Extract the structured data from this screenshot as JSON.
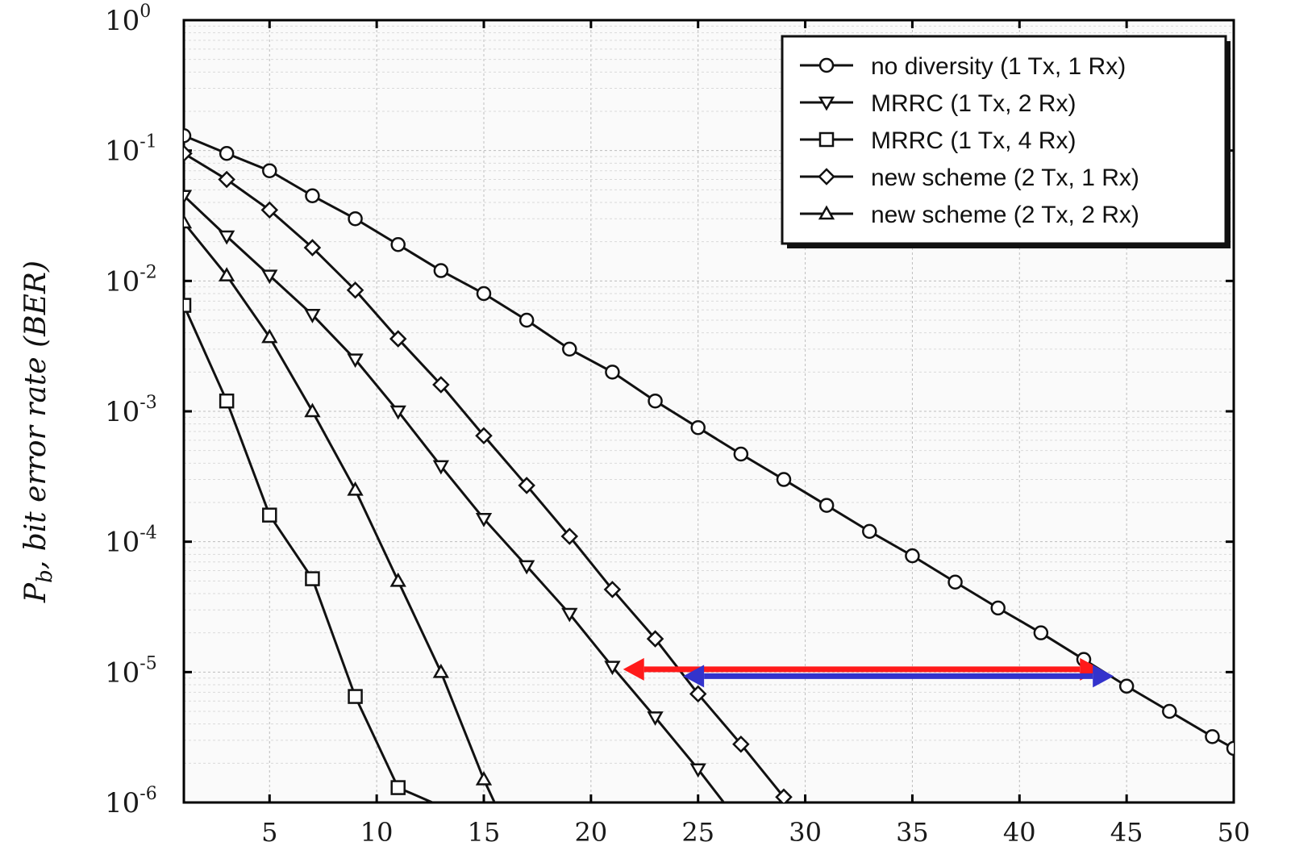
{
  "chart_data": {
    "type": "line",
    "title": "",
    "xlabel": "",
    "ylabel": "P_b, bit error rate (BER)",
    "ylabel_prefix": "P",
    "ylabel_sub": "b",
    "ylabel_rest": ", bit error rate (BER)",
    "x_scale": "linear",
    "y_scale": "log",
    "xlim": [
      1,
      50
    ],
    "ylim": [
      1e-06,
      1
    ],
    "x_ticks": [
      5,
      10,
      15,
      20,
      25,
      30,
      35,
      40,
      45,
      50
    ],
    "x_tick_labels": [
      "5",
      "10",
      "15",
      "20",
      "25",
      "30",
      "35",
      "40",
      "45",
      "50"
    ],
    "y_ticks": [
      {
        "value": 1,
        "base": "10",
        "exp": "0"
      },
      {
        "value": 0.1,
        "base": "10",
        "exp": "-1"
      },
      {
        "value": 0.01,
        "base": "10",
        "exp": "-2"
      },
      {
        "value": 0.001,
        "base": "10",
        "exp": "-3"
      },
      {
        "value": 0.0001,
        "base": "10",
        "exp": "-4"
      },
      {
        "value": 1e-05,
        "base": "10",
        "exp": "-5"
      },
      {
        "value": 1e-06,
        "base": "10",
        "exp": "-6"
      }
    ],
    "grid": true,
    "legend_position": "top-right",
    "series": [
      {
        "name": "no diversity (1 Tx, 1 Rx)",
        "marker": "circle",
        "x": [
          1,
          3,
          5,
          7,
          9,
          11,
          13,
          15,
          17,
          19,
          21,
          23,
          25,
          27,
          29,
          31,
          33,
          35,
          37,
          39,
          41,
          43,
          45,
          47,
          49,
          50
        ],
        "y": [
          0.13,
          0.095,
          0.07,
          0.045,
          0.03,
          0.019,
          0.012,
          0.008,
          0.005,
          0.003,
          0.002,
          0.0012,
          0.00075,
          0.00047,
          0.0003,
          0.00019,
          0.00012,
          7.8e-05,
          4.9e-05,
          3.1e-05,
          2e-05,
          1.25e-05,
          7.8e-06,
          5e-06,
          3.2e-06,
          2.6e-06
        ]
      },
      {
        "name": "MRRC (1 Tx, 2 Rx)",
        "marker": "triangle-down",
        "x": [
          1,
          3,
          5,
          7,
          9,
          11,
          13,
          15,
          17,
          19,
          21,
          23,
          25,
          26.2
        ],
        "y": [
          0.045,
          0.022,
          0.011,
          0.0055,
          0.0025,
          0.001,
          0.00038,
          0.00015,
          6.5e-05,
          2.8e-05,
          1.1e-05,
          4.5e-06,
          1.8e-06,
          1e-06
        ]
      },
      {
        "name": "MRRC (1 Tx, 4 Rx)",
        "marker": "square",
        "x": [
          1,
          3,
          5,
          7,
          9,
          11,
          12.6
        ],
        "y": [
          0.0065,
          0.0012,
          0.00016,
          5.2e-05,
          6.5e-06,
          1.3e-06,
          1e-06
        ]
      },
      {
        "name": "new scheme (2 Tx, 1 Rx)",
        "marker": "diamond",
        "x": [
          1,
          3,
          5,
          7,
          9,
          11,
          13,
          15,
          17,
          19,
          21,
          23,
          25,
          27,
          29
        ],
        "y": [
          0.095,
          0.06,
          0.035,
          0.018,
          0.0085,
          0.0036,
          0.0016,
          0.00065,
          0.00027,
          0.00011,
          4.3e-05,
          1.8e-05,
          6.8e-06,
          2.8e-06,
          1.1e-06
        ]
      },
      {
        "name": "new scheme (2 Tx, 2 Rx)",
        "marker": "triangle-up",
        "x": [
          1,
          3,
          5,
          7,
          9,
          11,
          13,
          15,
          15.5
        ],
        "y": [
          0.028,
          0.011,
          0.0037,
          0.001,
          0.00025,
          5e-05,
          1e-05,
          1.5e-06,
          1e-06
        ]
      }
    ],
    "annotations": [
      {
        "name": "red-arrow",
        "color": "#ff1a1a",
        "x_start": 21.5,
        "x_end": 43.8,
        "y": 1.05e-05
      },
      {
        "name": "blue-arrow",
        "color": "#3333cc",
        "x_start": 24.3,
        "x_end": 44.4,
        "y": 9.3e-06
      }
    ]
  }
}
